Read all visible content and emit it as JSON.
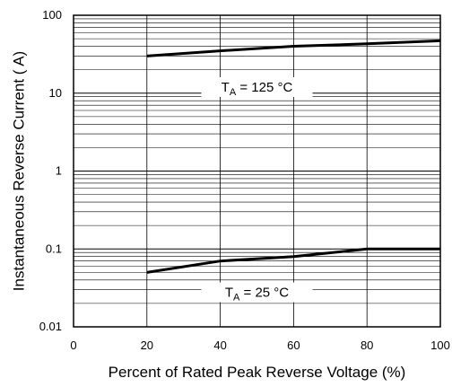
{
  "chart_data": {
    "type": "line",
    "xlabel": "Percent of Rated Peak Reverse Voltage (%)",
    "ylabel": "Instantaneous Reverse Current ( A)",
    "xlim": [
      0,
      100
    ],
    "ylim": [
      0.01,
      100
    ],
    "yscale": "log",
    "grid": true,
    "x_ticks": [
      "0",
      "20",
      "40",
      "60",
      "80",
      "100"
    ],
    "y_ticks": [
      "0.01",
      "0.1",
      "1",
      "10",
      "100"
    ],
    "series": [
      {
        "label": {
          "main": "T",
          "sub": "A",
          "rest": " = 125 °C"
        },
        "x": [
          20,
          40,
          60,
          80,
          100
        ],
        "y": [
          30,
          35,
          40,
          43,
          47
        ]
      },
      {
        "label": {
          "main": "T",
          "sub": "A",
          "rest": " = 25 °C"
        },
        "x": [
          20,
          40,
          60,
          80,
          100
        ],
        "y": [
          0.05,
          0.07,
          0.08,
          0.1,
          0.1
        ]
      }
    ]
  }
}
